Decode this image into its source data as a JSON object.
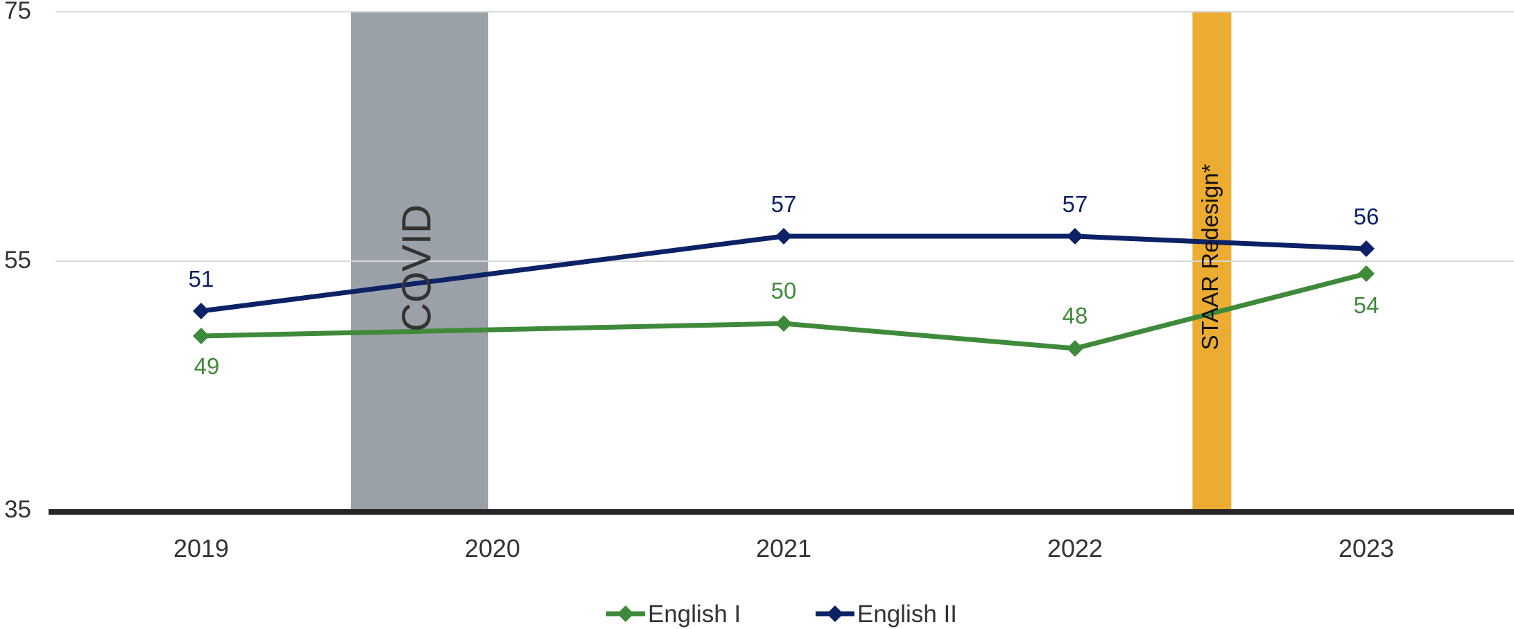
{
  "chart_data": {
    "type": "line",
    "categories": [
      "2019",
      "2020",
      "2021",
      "2022",
      "2023"
    ],
    "ylim": [
      35,
      75
    ],
    "yticks": [
      35,
      55,
      75
    ],
    "grid": true,
    "legend_position": "bottom",
    "series": [
      {
        "name": "English I",
        "color": "#3f8a3a",
        "values": [
          49,
          49.5,
          50,
          48,
          54
        ],
        "labels": [
          "49",
          "",
          "50",
          "48",
          "54"
        ]
      },
      {
        "name": "English II",
        "color": "#0d2166",
        "values": [
          51,
          54,
          57,
          57,
          56
        ],
        "labels": [
          "51",
          "",
          "57",
          "57",
          "56"
        ]
      }
    ],
    "annotations": [
      {
        "text": "COVID",
        "color": "#9aa1a8",
        "text_color": "#333333",
        "x_start": "2019",
        "x_end": "2020"
      },
      {
        "text": "STAAR Redesign*",
        "color": "#ebac31",
        "text_color": "#111111",
        "x_start": "2022",
        "x_end": "2023"
      }
    ]
  }
}
